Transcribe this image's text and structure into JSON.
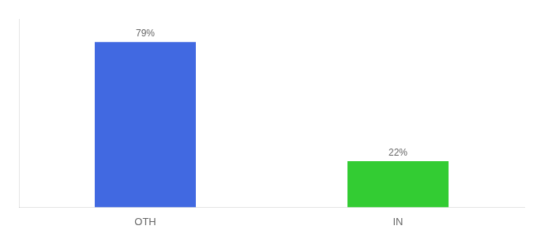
{
  "chart_data": {
    "type": "bar",
    "categories": [
      "OTH",
      "IN"
    ],
    "values": [
      79,
      22
    ],
    "value_labels": [
      "79%",
      "22%"
    ],
    "data_labels": true,
    "colors": [
      "#4169e1",
      "#33cc33"
    ],
    "ylim": [
      0,
      90
    ],
    "tick_labels": "x",
    "grid": false
  }
}
